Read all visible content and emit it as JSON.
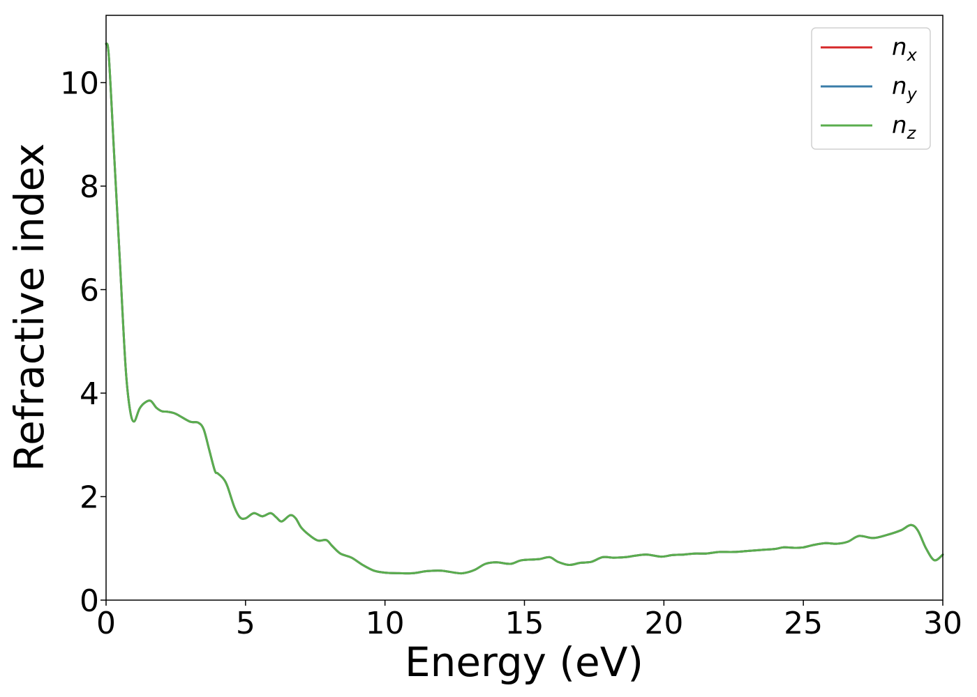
{
  "chart_data": {
    "type": "line",
    "title": "",
    "xlabel": "Energy (eV)",
    "ylabel": "Refractive index",
    "xlim": [
      0,
      30
    ],
    "ylim": [
      0,
      11.3
    ],
    "xticks": [
      "0",
      "5",
      "10",
      "15",
      "20",
      "25",
      "30"
    ],
    "xtick_values": [
      0,
      5,
      10,
      15,
      20,
      25,
      30
    ],
    "yticks": [
      "0",
      "2",
      "4",
      "6",
      "8",
      "10"
    ],
    "ytick_values": [
      0,
      2,
      4,
      6,
      8,
      10
    ],
    "grid": false,
    "legend": {
      "position": "top-right",
      "entries": [
        {
          "base": "n",
          "sub": "x",
          "color": "#d62728"
        },
        {
          "base": "n",
          "sub": "y",
          "color": "#3a7ca8"
        },
        {
          "base": "n",
          "sub": "z",
          "color": "#5aad4e"
        }
      ]
    },
    "x": [
      0,
      0.1,
      0.3,
      0.5,
      0.7,
      0.85,
      1.0,
      1.2,
      1.4,
      1.6,
      1.8,
      2.0,
      2.2,
      2.5,
      3.0,
      3.3,
      3.5,
      3.7,
      3.9,
      4.0,
      4.2,
      4.35,
      4.6,
      4.8,
      5.0,
      5.3,
      5.6,
      5.9,
      6.1,
      6.3,
      6.6,
      6.8,
      7.0,
      7.3,
      7.6,
      7.9,
      8.1,
      8.4,
      8.8,
      9.2,
      9.6,
      10.0,
      10.5,
      11.0,
      11.5,
      12.0,
      12.5,
      12.8,
      13.2,
      13.6,
      14.0,
      14.5,
      14.9,
      15.5,
      15.9,
      16.2,
      16.6,
      17.0,
      17.4,
      17.8,
      18.2,
      18.6,
      19.0,
      19.4,
      19.9,
      20.3,
      20.7,
      21.1,
      21.5,
      22.0,
      22.5,
      23.0,
      23.5,
      24.0,
      24.3,
      24.7,
      25.0,
      25.4,
      25.8,
      26.2,
      26.6,
      27.0,
      27.5,
      28.0,
      28.5,
      28.85,
      29.1,
      29.4,
      29.7,
      30.0
    ],
    "series": [
      {
        "name": "n_x",
        "color": "#d62728",
        "values": [
          10.75,
          10.5,
          8.5,
          6.5,
          4.5,
          3.7,
          3.45,
          3.7,
          3.82,
          3.85,
          3.72,
          3.65,
          3.64,
          3.6,
          3.45,
          3.43,
          3.3,
          2.9,
          2.5,
          2.45,
          2.35,
          2.2,
          1.8,
          1.6,
          1.58,
          1.68,
          1.62,
          1.68,
          1.6,
          1.52,
          1.64,
          1.58,
          1.4,
          1.25,
          1.15,
          1.16,
          1.05,
          0.9,
          0.82,
          0.68,
          0.57,
          0.53,
          0.52,
          0.52,
          0.56,
          0.57,
          0.53,
          0.52,
          0.58,
          0.7,
          0.73,
          0.7,
          0.77,
          0.79,
          0.83,
          0.74,
          0.68,
          0.72,
          0.74,
          0.83,
          0.82,
          0.83,
          0.86,
          0.88,
          0.84,
          0.87,
          0.88,
          0.9,
          0.9,
          0.93,
          0.93,
          0.95,
          0.97,
          0.99,
          1.02,
          1.01,
          1.02,
          1.07,
          1.1,
          1.09,
          1.13,
          1.24,
          1.2,
          1.26,
          1.35,
          1.45,
          1.35,
          1.0,
          0.77,
          0.88
        ]
      },
      {
        "name": "n_y",
        "color": "#3a7ca8",
        "values": [
          10.75,
          10.5,
          8.5,
          6.5,
          4.5,
          3.7,
          3.45,
          3.7,
          3.82,
          3.85,
          3.72,
          3.65,
          3.64,
          3.6,
          3.45,
          3.43,
          3.3,
          2.9,
          2.5,
          2.45,
          2.35,
          2.2,
          1.8,
          1.6,
          1.58,
          1.68,
          1.62,
          1.68,
          1.6,
          1.52,
          1.64,
          1.58,
          1.4,
          1.25,
          1.15,
          1.16,
          1.05,
          0.9,
          0.82,
          0.68,
          0.57,
          0.53,
          0.52,
          0.52,
          0.56,
          0.57,
          0.53,
          0.52,
          0.58,
          0.7,
          0.73,
          0.7,
          0.77,
          0.79,
          0.83,
          0.74,
          0.68,
          0.72,
          0.74,
          0.83,
          0.82,
          0.83,
          0.86,
          0.88,
          0.84,
          0.87,
          0.88,
          0.9,
          0.9,
          0.93,
          0.93,
          0.95,
          0.97,
          0.99,
          1.02,
          1.01,
          1.02,
          1.07,
          1.1,
          1.09,
          1.13,
          1.24,
          1.2,
          1.26,
          1.35,
          1.45,
          1.35,
          1.0,
          0.77,
          0.88
        ]
      },
      {
        "name": "n_z",
        "color": "#5aad4e",
        "values": [
          10.75,
          10.5,
          8.5,
          6.5,
          4.5,
          3.7,
          3.45,
          3.7,
          3.82,
          3.85,
          3.72,
          3.65,
          3.64,
          3.6,
          3.45,
          3.43,
          3.3,
          2.9,
          2.5,
          2.45,
          2.35,
          2.2,
          1.8,
          1.6,
          1.58,
          1.68,
          1.62,
          1.68,
          1.6,
          1.52,
          1.64,
          1.58,
          1.4,
          1.25,
          1.15,
          1.16,
          1.05,
          0.9,
          0.82,
          0.68,
          0.57,
          0.53,
          0.52,
          0.52,
          0.56,
          0.57,
          0.53,
          0.52,
          0.58,
          0.7,
          0.73,
          0.7,
          0.77,
          0.79,
          0.83,
          0.74,
          0.68,
          0.72,
          0.74,
          0.83,
          0.82,
          0.83,
          0.86,
          0.88,
          0.84,
          0.87,
          0.88,
          0.9,
          0.9,
          0.93,
          0.93,
          0.95,
          0.97,
          0.99,
          1.02,
          1.01,
          1.02,
          1.07,
          1.1,
          1.09,
          1.13,
          1.24,
          1.2,
          1.26,
          1.35,
          1.45,
          1.35,
          1.0,
          0.77,
          0.88
        ]
      }
    ]
  }
}
